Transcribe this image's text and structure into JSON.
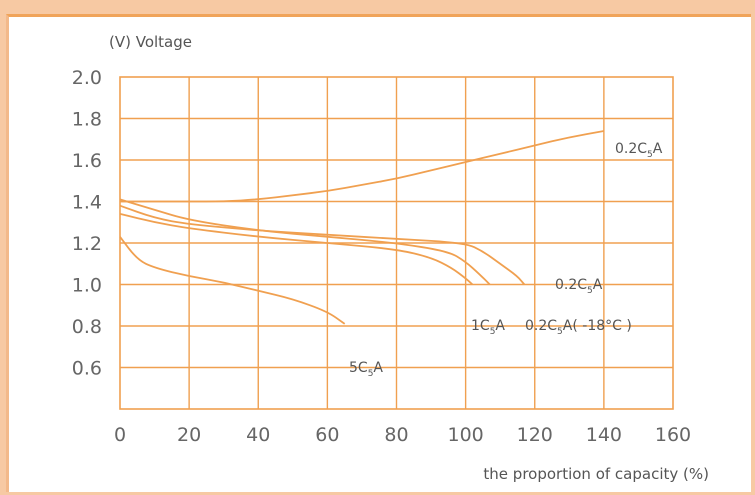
{
  "chart_data": {
    "type": "line",
    "ylabel": "(V) Voltage",
    "xlabel": "the proportion of capacity (%)",
    "xlim": [
      0,
      160
    ],
    "ylim": [
      0.4,
      2.0
    ],
    "xticks": [
      0,
      20,
      40,
      60,
      80,
      100,
      120,
      140,
      160
    ],
    "yticks": [
      0.6,
      0.8,
      1.0,
      1.2,
      1.4,
      1.6,
      1.8,
      2.0
    ],
    "grid": true,
    "colors": {
      "line": "#f0a050",
      "grid": "#f0a050",
      "text": "#555555"
    },
    "series": [
      {
        "name": "0.2C5A",
        "key": "charge",
        "points": [
          [
            0,
            1.4
          ],
          [
            10,
            1.4
          ],
          [
            20,
            1.4
          ],
          [
            30,
            1.4
          ],
          [
            40,
            1.41
          ],
          [
            50,
            1.43
          ],
          [
            60,
            1.45
          ],
          [
            70,
            1.48
          ],
          [
            80,
            1.51
          ],
          [
            90,
            1.55
          ],
          [
            100,
            1.59
          ],
          [
            110,
            1.63
          ],
          [
            120,
            1.67
          ],
          [
            130,
            1.71
          ],
          [
            140,
            1.74
          ]
        ]
      },
      {
        "name": "0.2C5A",
        "key": "discharge_02",
        "points": [
          [
            0,
            1.38
          ],
          [
            10,
            1.32
          ],
          [
            20,
            1.29
          ],
          [
            40,
            1.26
          ],
          [
            60,
            1.24
          ],
          [
            80,
            1.22
          ],
          [
            100,
            1.2
          ],
          [
            105,
            1.16
          ],
          [
            110,
            1.1
          ],
          [
            115,
            1.04
          ],
          [
            117,
            1.0
          ]
        ]
      },
      {
        "name": "0.2C5A(-18°C)",
        "key": "discharge_cold",
        "points": [
          [
            0,
            1.41
          ],
          [
            10,
            1.36
          ],
          [
            20,
            1.31
          ],
          [
            40,
            1.26
          ],
          [
            60,
            1.23
          ],
          [
            80,
            1.2
          ],
          [
            95,
            1.16
          ],
          [
            100,
            1.11
          ],
          [
            104,
            1.05
          ],
          [
            107,
            1.0
          ]
        ]
      },
      {
        "name": "1C5A",
        "key": "discharge_1c",
        "points": [
          [
            0,
            1.34
          ],
          [
            10,
            1.3
          ],
          [
            20,
            1.27
          ],
          [
            40,
            1.23
          ],
          [
            60,
            1.2
          ],
          [
            80,
            1.17
          ],
          [
            90,
            1.13
          ],
          [
            96,
            1.08
          ],
          [
            100,
            1.03
          ],
          [
            102,
            1.0
          ]
        ]
      },
      {
        "name": "5C5A",
        "key": "discharge_5c",
        "points": [
          [
            0,
            1.23
          ],
          [
            5,
            1.12
          ],
          [
            10,
            1.08
          ],
          [
            20,
            1.04
          ],
          [
            30,
            1.01
          ],
          [
            40,
            0.97
          ],
          [
            50,
            0.93
          ],
          [
            60,
            0.87
          ],
          [
            65,
            0.81
          ]
        ]
      }
    ],
    "labels": [
      {
        "key": "charge",
        "parts": [
          "0.2C",
          "5",
          "A"
        ]
      },
      {
        "key": "discharge_02",
        "parts": [
          "0.2C",
          "5",
          "A"
        ]
      },
      {
        "key": "discharge_cold",
        "parts": [
          "0.2C",
          "5",
          "A( -18°C )"
        ]
      },
      {
        "key": "discharge_1c",
        "parts": [
          "1C",
          "5",
          "A"
        ]
      },
      {
        "key": "discharge_5c",
        "parts": [
          "5C",
          "5",
          "A"
        ]
      }
    ]
  }
}
